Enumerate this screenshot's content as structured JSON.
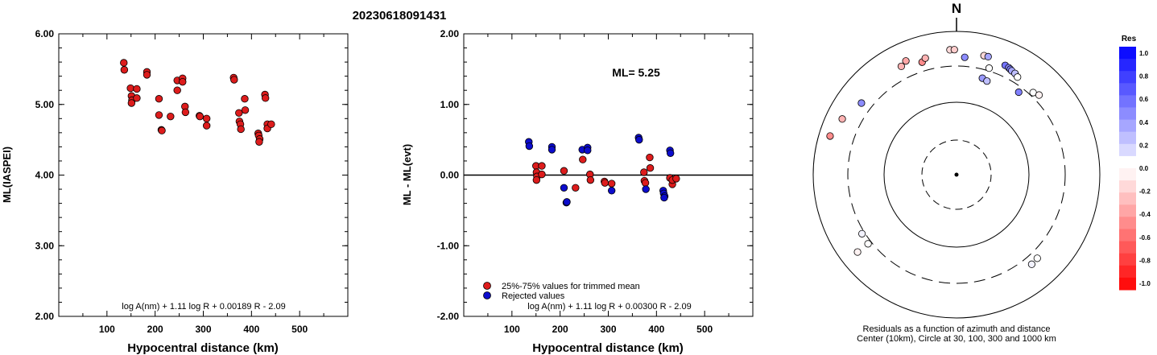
{
  "figure": {
    "title": "20230618091431"
  },
  "chart_data": [
    {
      "type": "scatter",
      "id": "left",
      "ylabel": "ML(IASPEI)",
      "xlabel": "Hypocentral distance (km)",
      "xlim": [
        0,
        600
      ],
      "ylim": [
        2.0,
        6.0
      ],
      "xticks": [
        "100",
        "200",
        "300",
        "400",
        "500"
      ],
      "xtick_values": [
        100,
        200,
        300,
        400,
        500
      ],
      "yticks": [
        "2.00",
        "3.00",
        "4.00",
        "5.00",
        "6.00"
      ],
      "ytick_values": [
        2,
        3,
        4,
        5,
        6
      ],
      "formula": "log A(nm) + 1.11 log R + 0.00189 R - 2.09",
      "point_color": "#dd1c1c",
      "points": [
        [
          135,
          5.59
        ],
        [
          136,
          5.49
        ],
        [
          149,
          5.23
        ],
        [
          151,
          5.12
        ],
        [
          152,
          5.06
        ],
        [
          151,
          5.02
        ],
        [
          162,
          5.22
        ],
        [
          162,
          5.09
        ],
        [
          183,
          5.46
        ],
        [
          183,
          5.42
        ],
        [
          208,
          5.08
        ],
        [
          208,
          4.85
        ],
        [
          213,
          4.64
        ],
        [
          214,
          4.63
        ],
        [
          232,
          4.83
        ],
        [
          246,
          5.34
        ],
        [
          246,
          5.2
        ],
        [
          257,
          5.37
        ],
        [
          257,
          5.32
        ],
        [
          262,
          4.97
        ],
        [
          263,
          4.89
        ],
        [
          292,
          4.84
        ],
        [
          293,
          4.83
        ],
        [
          307,
          4.8
        ],
        [
          307,
          4.7
        ],
        [
          363,
          5.38
        ],
        [
          364,
          5.35
        ],
        [
          374,
          4.88
        ],
        [
          375,
          4.76
        ],
        [
          377,
          4.72
        ],
        [
          378,
          4.65
        ],
        [
          386,
          5.08
        ],
        [
          387,
          4.92
        ],
        [
          414,
          4.59
        ],
        [
          415,
          4.56
        ],
        [
          417,
          4.51
        ],
        [
          416,
          4.47
        ],
        [
          428,
          5.14
        ],
        [
          429,
          5.09
        ],
        [
          433,
          4.72
        ],
        [
          433,
          4.66
        ],
        [
          441,
          4.72
        ]
      ]
    },
    {
      "type": "scatter",
      "id": "middle",
      "ylabel": "ML - ML(evt)",
      "xlabel": "Hypocentral distance (km)",
      "xlim": [
        0,
        600
      ],
      "ylim": [
        -2.0,
        2.0
      ],
      "xticks": [
        "100",
        "200",
        "300",
        "400",
        "500"
      ],
      "xtick_values": [
        100,
        200,
        300,
        400,
        500
      ],
      "yticks": [
        "-2.00",
        "-1.00",
        "0.00",
        "1.00",
        "2.00"
      ],
      "ytick_values": [
        -2,
        -1,
        0,
        1,
        2
      ],
      "annotation": "ML= 5.25",
      "legend": [
        {
          "label": "25%-75% values for trimmed mean",
          "color": "#dd1c1c"
        },
        {
          "label": "Rejected values",
          "color": "#0c0ccc"
        }
      ],
      "formula": "log A(nm) + 1.11 log R + 0.00300 R - 2.09",
      "series": [
        {
          "name": "25%-75% values for trimmed mean",
          "color": "#dd1c1c",
          "points": [
            [
              150,
              0.13
            ],
            [
              151,
              0.04
            ],
            [
              152,
              -0.02
            ],
            [
              151,
              -0.07
            ],
            [
              162,
              0.13
            ],
            [
              162,
              0.01
            ],
            [
              208,
              0.06
            ],
            [
              232,
              -0.18
            ],
            [
              247,
              0.22
            ],
            [
              262,
              0.01
            ],
            [
              263,
              -0.07
            ],
            [
              292,
              -0.09
            ],
            [
              293,
              -0.11
            ],
            [
              307,
              -0.12
            ],
            [
              374,
              0.04
            ],
            [
              375,
              -0.08
            ],
            [
              377,
              -0.11
            ],
            [
              386,
              0.25
            ],
            [
              387,
              0.1
            ],
            [
              428,
              -0.04
            ],
            [
              433,
              -0.13
            ],
            [
              433,
              -0.07
            ],
            [
              441,
              -0.05
            ]
          ]
        },
        {
          "name": "Rejected values",
          "color": "#0c0ccc",
          "points": [
            [
              135,
              0.47
            ],
            [
              136,
              0.41
            ],
            [
              183,
              0.4
            ],
            [
              183,
              0.36
            ],
            [
              208,
              -0.18
            ],
            [
              213,
              -0.39
            ],
            [
              214,
              -0.38
            ],
            [
              246,
              0.36
            ],
            [
              257,
              0.39
            ],
            [
              257,
              0.35
            ],
            [
              307,
              -0.22
            ],
            [
              363,
              0.53
            ],
            [
              364,
              0.5
            ],
            [
              378,
              -0.2
            ],
            [
              414,
              -0.22
            ],
            [
              415,
              -0.26
            ],
            [
              417,
              -0.3
            ],
            [
              416,
              -0.32
            ],
            [
              428,
              0.35
            ],
            [
              429,
              0.31
            ]
          ]
        }
      ]
    },
    {
      "type": "scatter",
      "id": "polar",
      "north_label": "N",
      "caption_line1": "Residuals as a function of azimuth and distance",
      "caption_line2": "Center (10km), Circle at 30, 100, 300 and 1000 km",
      "colorbar_title": "Res",
      "colorbar_ticks": [
        "1.0",
        "0.8",
        "0.6",
        "0.4",
        "0.2",
        "0.0",
        "-0.2",
        "-0.4",
        "-0.6",
        "-0.8",
        "-1.0"
      ],
      "colorbar_values": [
        1.0,
        0.8,
        0.6,
        0.4,
        0.2,
        0.0,
        -0.2,
        -0.4,
        -0.6,
        -0.8,
        -1.0
      ],
      "stations": [
        {
          "az": 287,
          "dist": 680,
          "res": -0.45
        },
        {
          "az": 296,
          "dist": 570,
          "res": -0.3
        },
        {
          "az": 307,
          "dist": 430,
          "res": 0.45
        },
        {
          "az": 333,
          "dist": 470,
          "res": -0.3
        },
        {
          "az": 336,
          "dist": 520,
          "res": -0.35
        },
        {
          "az": 343,
          "dist": 410,
          "res": -0.45
        },
        {
          "az": 345,
          "dist": 455,
          "res": -0.3
        },
        {
          "az": 357,
          "dist": 530,
          "res": -0.15
        },
        {
          "az": 359,
          "dist": 530,
          "res": -0.2
        },
        {
          "az": 4,
          "dist": 410,
          "res": 0.45
        },
        {
          "az": 13,
          "dist": 480,
          "res": -0.15
        },
        {
          "az": 15,
          "dist": 480,
          "res": 0.35
        },
        {
          "az": 17,
          "dist": 330,
          "res": 0.0
        },
        {
          "az": 15,
          "dist": 230,
          "res": 0.4
        },
        {
          "az": 18,
          "dist": 220,
          "res": 0.25
        },
        {
          "az": 24,
          "dist": 440,
          "res": 0.55
        },
        {
          "az": 26,
          "dist": 430,
          "res": 0.45
        },
        {
          "az": 27,
          "dist": 420,
          "res": 0.5
        },
        {
          "az": 28,
          "dist": 410,
          "res": 0.35
        },
        {
          "az": 30,
          "dist": 400,
          "res": 0.25
        },
        {
          "az": 32,
          "dist": 375,
          "res": 0.0
        },
        {
          "az": 37,
          "dist": 255,
          "res": 0.5
        },
        {
          "az": 43,
          "dist": 340,
          "res": 0.0
        },
        {
          "az": 46,
          "dist": 370,
          "res": -0.05
        },
        {
          "az": 136,
          "dist": 390,
          "res": 0.0
        },
        {
          "az": 140,
          "dist": 400,
          "res": 0.05
        },
        {
          "az": 232,
          "dist": 340,
          "res": 0.0
        },
        {
          "az": 238,
          "dist": 330,
          "res": 0.05
        },
        {
          "az": 232,
          "dist": 540,
          "res": -0.05
        }
      ]
    }
  ]
}
